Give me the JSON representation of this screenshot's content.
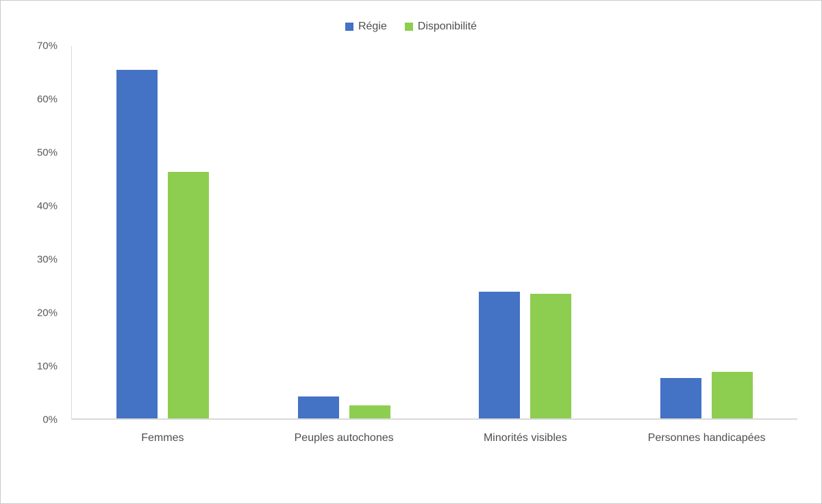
{
  "chart_data": {
    "type": "bar",
    "title": "",
    "xlabel": "",
    "ylabel": "",
    "categories": [
      "Femmes",
      "Peuples autochones",
      "Minorités visibles",
      "Personnes handicapées"
    ],
    "series": [
      {
        "name": "Régie",
        "color": "#4472C4",
        "values": [
          65.3,
          4.1,
          23.7,
          7.6
        ]
      },
      {
        "name": "Disponibilité",
        "color": "#8DCE51",
        "values": [
          46.1,
          2.5,
          23.4,
          8.7
        ]
      }
    ],
    "ylim": [
      0,
      70
    ],
    "y_ticks": [
      "0%",
      "10%",
      "20%",
      "30%",
      "40%",
      "50%",
      "60%",
      "70%"
    ],
    "y_tick_values": [
      0,
      10,
      20,
      30,
      40,
      50,
      60,
      70
    ],
    "grid": false,
    "legend_position": "top"
  },
  "colors": {
    "background": "#FFFFFF",
    "frame_border": "#C9C9C9",
    "axis_line": "#D9D9D9",
    "tick_label": "#595959",
    "category_label": "#4E4E4E",
    "legend_label": "#4E4E4E"
  }
}
